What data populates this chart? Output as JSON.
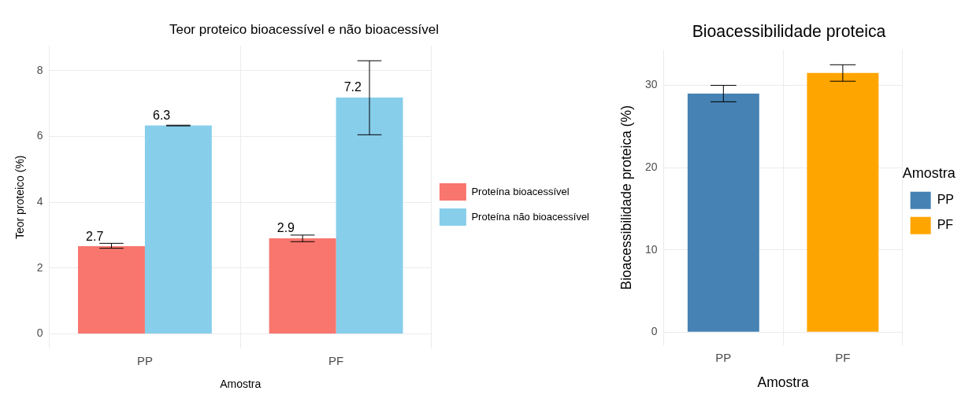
{
  "chart_data": [
    {
      "type": "bar",
      "title": "Teor proteico bioacessível e não bioacessível",
      "xlabel": "Amostra",
      "ylabel": "Teor proteico (%)",
      "categories": [
        "PP",
        "PF"
      ],
      "series": [
        {
          "name": "Proteína bioacessível",
          "color": "#f8766d",
          "values": [
            2.66,
            2.9
          ],
          "errors": [
            [
              2.6,
              2.75
            ],
            [
              2.8,
              3.0
            ]
          ],
          "value_labels": [
            "2.7",
            "2.9"
          ]
        },
        {
          "name": "Proteína não bioacessível",
          "color": "#87ceeb",
          "values": [
            6.33,
            7.18
          ],
          "errors": [
            [
              6.32,
              6.34
            ],
            [
              6.05,
              8.3
            ]
          ],
          "value_labels": [
            "6.3",
            "7.2"
          ]
        }
      ],
      "ylim": [
        -0.45,
        8.75
      ],
      "yticks": [
        0,
        2,
        4,
        6,
        8
      ],
      "grid": true,
      "legend": "right"
    },
    {
      "type": "bar",
      "title": "Bioacessibilidade proteica",
      "xlabel": "Amostra",
      "ylabel": "Bioacessibilidade proteica (%)",
      "legend_title": "Amostra",
      "categories": [
        "PP",
        "PF"
      ],
      "series": [
        {
          "name": "PP",
          "color": "#4682b4",
          "values": [
            29.0,
            null
          ],
          "errors": [
            [
              28.0,
              30.0
            ],
            null
          ]
        },
        {
          "name": "PF",
          "color": "#ffa500",
          "values": [
            null,
            31.5
          ],
          "errors": [
            null,
            [
              30.5,
              32.5
            ]
          ]
        }
      ],
      "ylim": [
        -1.6,
        34.3
      ],
      "yticks": [
        0,
        10,
        20,
        30
      ],
      "grid": true,
      "legend": "right"
    }
  ]
}
